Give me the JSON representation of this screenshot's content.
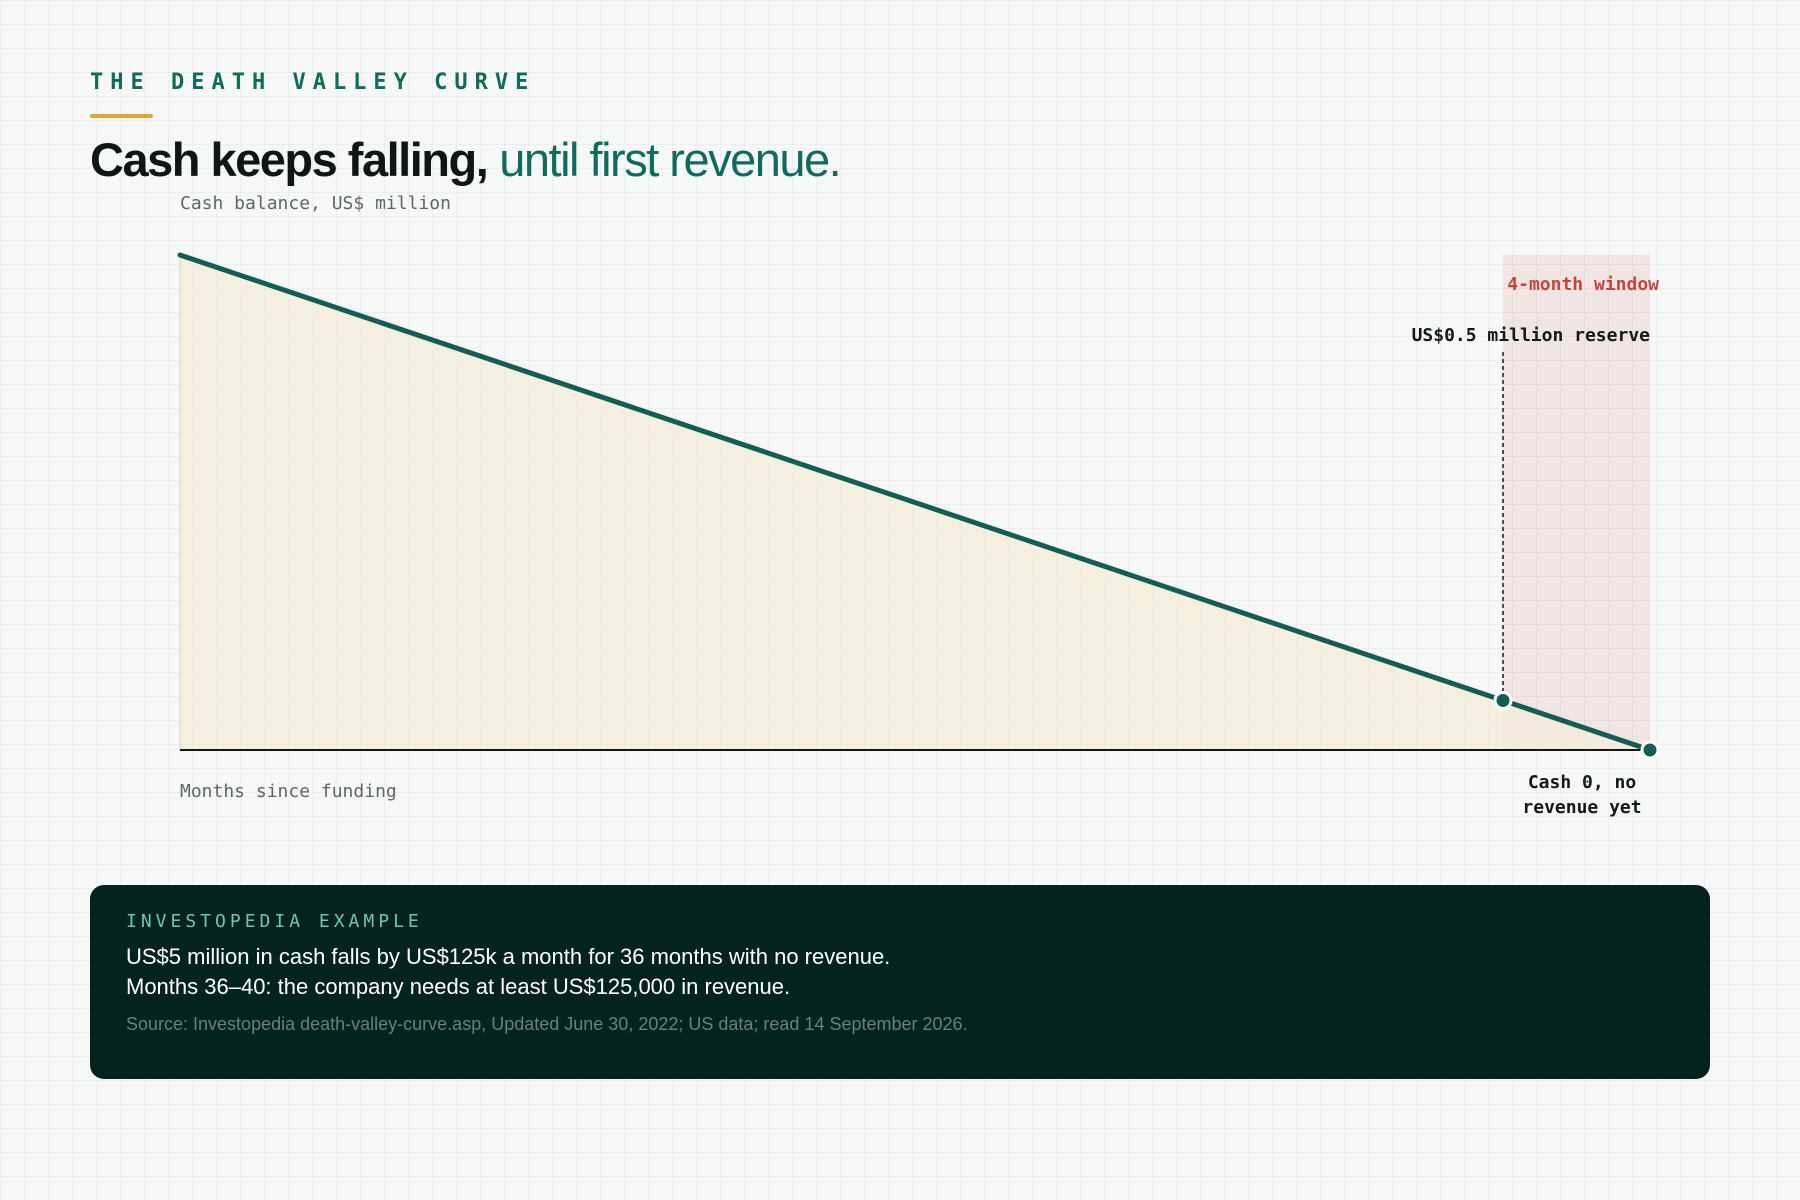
{
  "header": {
    "kicker": "THE DEATH VALLEY CURVE",
    "headline_lead": "Cash keeps falling,",
    "headline_tail": "until first revenue.",
    "accent_color": "#e4a632"
  },
  "chart_data": {
    "type": "area",
    "ylabel": "Cash balance, US$ million",
    "xlabel": "Months since funding",
    "xlim": [
      0,
      40
    ],
    "ylim": [
      0,
      5
    ],
    "grid": false,
    "series": [
      {
        "x": [
          0,
          36,
          40
        ],
        "y": [
          5,
          0.5,
          0
        ]
      }
    ],
    "line_color": "#135e54",
    "fill_color": "#f5ecd9",
    "highlight_window": {
      "x_start": 36,
      "x_end": 40,
      "label": "4-month window",
      "color": "#c2463c"
    },
    "annotations": [
      {
        "x": 36,
        "y": 0.5,
        "text": "US$0.5 million reserve"
      },
      {
        "x": 40,
        "y": 0,
        "text_line1": "Cash 0, no",
        "text_line2": "revenue yet"
      }
    ]
  },
  "panel": {
    "kicker": "INVESTOPEDIA EXAMPLE",
    "line1": "US$5 million in cash falls by US$125k a month for 36 months with no revenue.",
    "line2": "Months 36–40: the company needs at least US$125,000 in revenue.",
    "source": "Source: Investopedia death-valley-curve.asp, Updated June 30, 2022; US data; read 14 September 2026."
  }
}
